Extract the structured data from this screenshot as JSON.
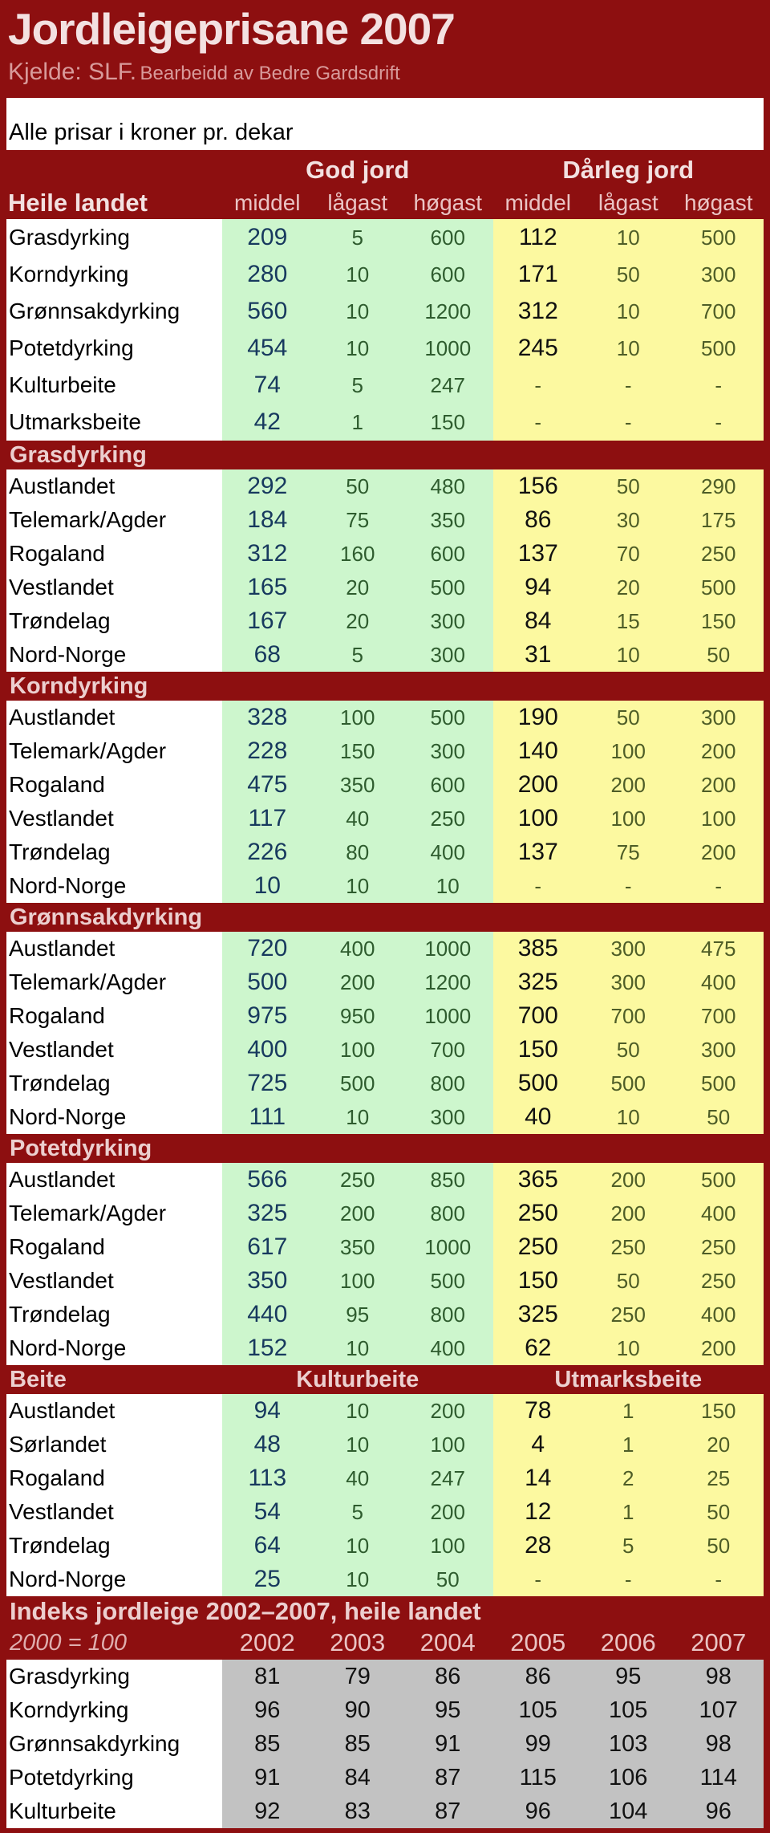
{
  "header": {
    "title": "Jordleigeprisane 2007",
    "source": "Kjelde: SLF.",
    "source_note": "Bearbeidd av Bedre Gardsdrift",
    "note": "Alle prisar i kroner pr. dekar"
  },
  "colors": {
    "dark_red": "#8d0f10",
    "good_soil_green": "#cdf6cd",
    "poor_soil_yellow": "#fcf9a0",
    "index_gray": "#c2c2c2",
    "middel_navy": "#17395e",
    "minmax_green": "#2e5c2e",
    "minmax_olive": "#4e5d27",
    "header_pink": "#f3e1e1"
  },
  "chart_data": [
    {
      "type": "table",
      "title": "Jordleigeprisane 2007",
      "unit": "kroner pr. dekar",
      "column_groups": [
        "God jord",
        "Dårleg jord"
      ],
      "columns": [
        "middel",
        "lågast",
        "høgast",
        "middel",
        "lågast",
        "høgast"
      ],
      "sections": [
        {
          "name": "Heile landet",
          "rows": [
            [
              "Grasdyrking",
              "209",
              "5",
              "600",
              "112",
              "10",
              "500"
            ],
            [
              "Korndyrking",
              "280",
              "10",
              "600",
              "171",
              "50",
              "300"
            ],
            [
              "Grønnsakdyrking",
              "560",
              "10",
              "1200",
              "312",
              "10",
              "700"
            ],
            [
              "Potetdyrking",
              "454",
              "10",
              "1000",
              "245",
              "10",
              "500"
            ],
            [
              "Kulturbeite",
              "74",
              "5",
              "247",
              "-",
              "-",
              "-"
            ],
            [
              "Utmarksbeite",
              "42",
              "1",
              "150",
              "-",
              "-",
              "-"
            ]
          ]
        },
        {
          "name": "Grasdyrking",
          "rows": [
            [
              "Austlandet",
              "292",
              "50",
              "480",
              "156",
              "50",
              "290"
            ],
            [
              "Telemark/Agder",
              "184",
              "75",
              "350",
              "86",
              "30",
              "175"
            ],
            [
              "Rogaland",
              "312",
              "160",
              "600",
              "137",
              "70",
              "250"
            ],
            [
              "Vestlandet",
              "165",
              "20",
              "500",
              "94",
              "20",
              "500"
            ],
            [
              "Trøndelag",
              "167",
              "20",
              "300",
              "84",
              "15",
              "150"
            ],
            [
              "Nord-Norge",
              "68",
              "5",
              "300",
              "31",
              "10",
              "50"
            ]
          ]
        },
        {
          "name": "Korndyrking",
          "rows": [
            [
              "Austlandet",
              "328",
              "100",
              "500",
              "190",
              "50",
              "300"
            ],
            [
              "Telemark/Agder",
              "228",
              "150",
              "300",
              "140",
              "100",
              "200"
            ],
            [
              "Rogaland",
              "475",
              "350",
              "600",
              "200",
              "200",
              "200"
            ],
            [
              "Vestlandet",
              "117",
              "40",
              "250",
              "100",
              "100",
              "100"
            ],
            [
              "Trøndelag",
              "226",
              "80",
              "400",
              "137",
              "75",
              "200"
            ],
            [
              "Nord-Norge",
              "10",
              "10",
              "10",
              "-",
              "-",
              "-"
            ]
          ]
        },
        {
          "name": "Grønnsakdyrking",
          "rows": [
            [
              "Austlandet",
              "720",
              "400",
              "1000",
              "385",
              "300",
              "475"
            ],
            [
              "Telemark/Agder",
              "500",
              "200",
              "1200",
              "325",
              "300",
              "400"
            ],
            [
              "Rogaland",
              "975",
              "950",
              "1000",
              "700",
              "700",
              "700"
            ],
            [
              "Vestlandet",
              "400",
              "100",
              "700",
              "150",
              "50",
              "300"
            ],
            [
              "Trøndelag",
              "725",
              "500",
              "800",
              "500",
              "500",
              "500"
            ],
            [
              "Nord-Norge",
              "111",
              "10",
              "300",
              "40",
              "10",
              "50"
            ]
          ]
        },
        {
          "name": "Potetdyrking",
          "rows": [
            [
              "Austlandet",
              "566",
              "250",
              "850",
              "365",
              "200",
              "500"
            ],
            [
              "Telemark/Agder",
              "325",
              "200",
              "800",
              "250",
              "200",
              "400"
            ],
            [
              "Rogaland",
              "617",
              "350",
              "1000",
              "250",
              "250",
              "250"
            ],
            [
              "Vestlandet",
              "350",
              "100",
              "500",
              "150",
              "50",
              "250"
            ],
            [
              "Trøndelag",
              "440",
              "95",
              "800",
              "325",
              "250",
              "400"
            ],
            [
              "Nord-Norge",
              "152",
              "10",
              "400",
              "62",
              "10",
              "200"
            ]
          ]
        },
        {
          "name": "Beite",
          "column_groups": [
            "Kulturbeite",
            "Utmarksbeite"
          ],
          "rows": [
            [
              "Austlandet",
              "94",
              "10",
              "200",
              "78",
              "1",
              "150"
            ],
            [
              "Sørlandet",
              "48",
              "10",
              "100",
              "4",
              "1",
              "20"
            ],
            [
              "Rogaland",
              "113",
              "40",
              "247",
              "14",
              "2",
              "25"
            ],
            [
              "Vestlandet",
              "54",
              "5",
              "200",
              "12",
              "1",
              "50"
            ],
            [
              "Trøndelag",
              "64",
              "10",
              "100",
              "28",
              "5",
              "50"
            ],
            [
              "Nord-Norge",
              "25",
              "10",
              "50",
              "-",
              "-",
              "-"
            ]
          ]
        }
      ]
    },
    {
      "type": "table",
      "title": "Indeks jordleige 2002–2007, heile landet",
      "base_label": "2000 = 100",
      "columns": [
        "2002",
        "2003",
        "2004",
        "2005",
        "2006",
        "2007"
      ],
      "rows": [
        [
          "Grasdyrking",
          "81",
          "79",
          "86",
          "86",
          "95",
          "98"
        ],
        [
          "Korndyrking",
          "96",
          "90",
          "95",
          "105",
          "105",
          "107"
        ],
        [
          "Grønnsakdyrking",
          "85",
          "85",
          "91",
          "99",
          "103",
          "98"
        ],
        [
          "Potetdyrking",
          "91",
          "84",
          "87",
          "115",
          "106",
          "114"
        ],
        [
          "Kulturbeite",
          "92",
          "83",
          "87",
          "96",
          "104",
          "96"
        ]
      ]
    }
  ]
}
